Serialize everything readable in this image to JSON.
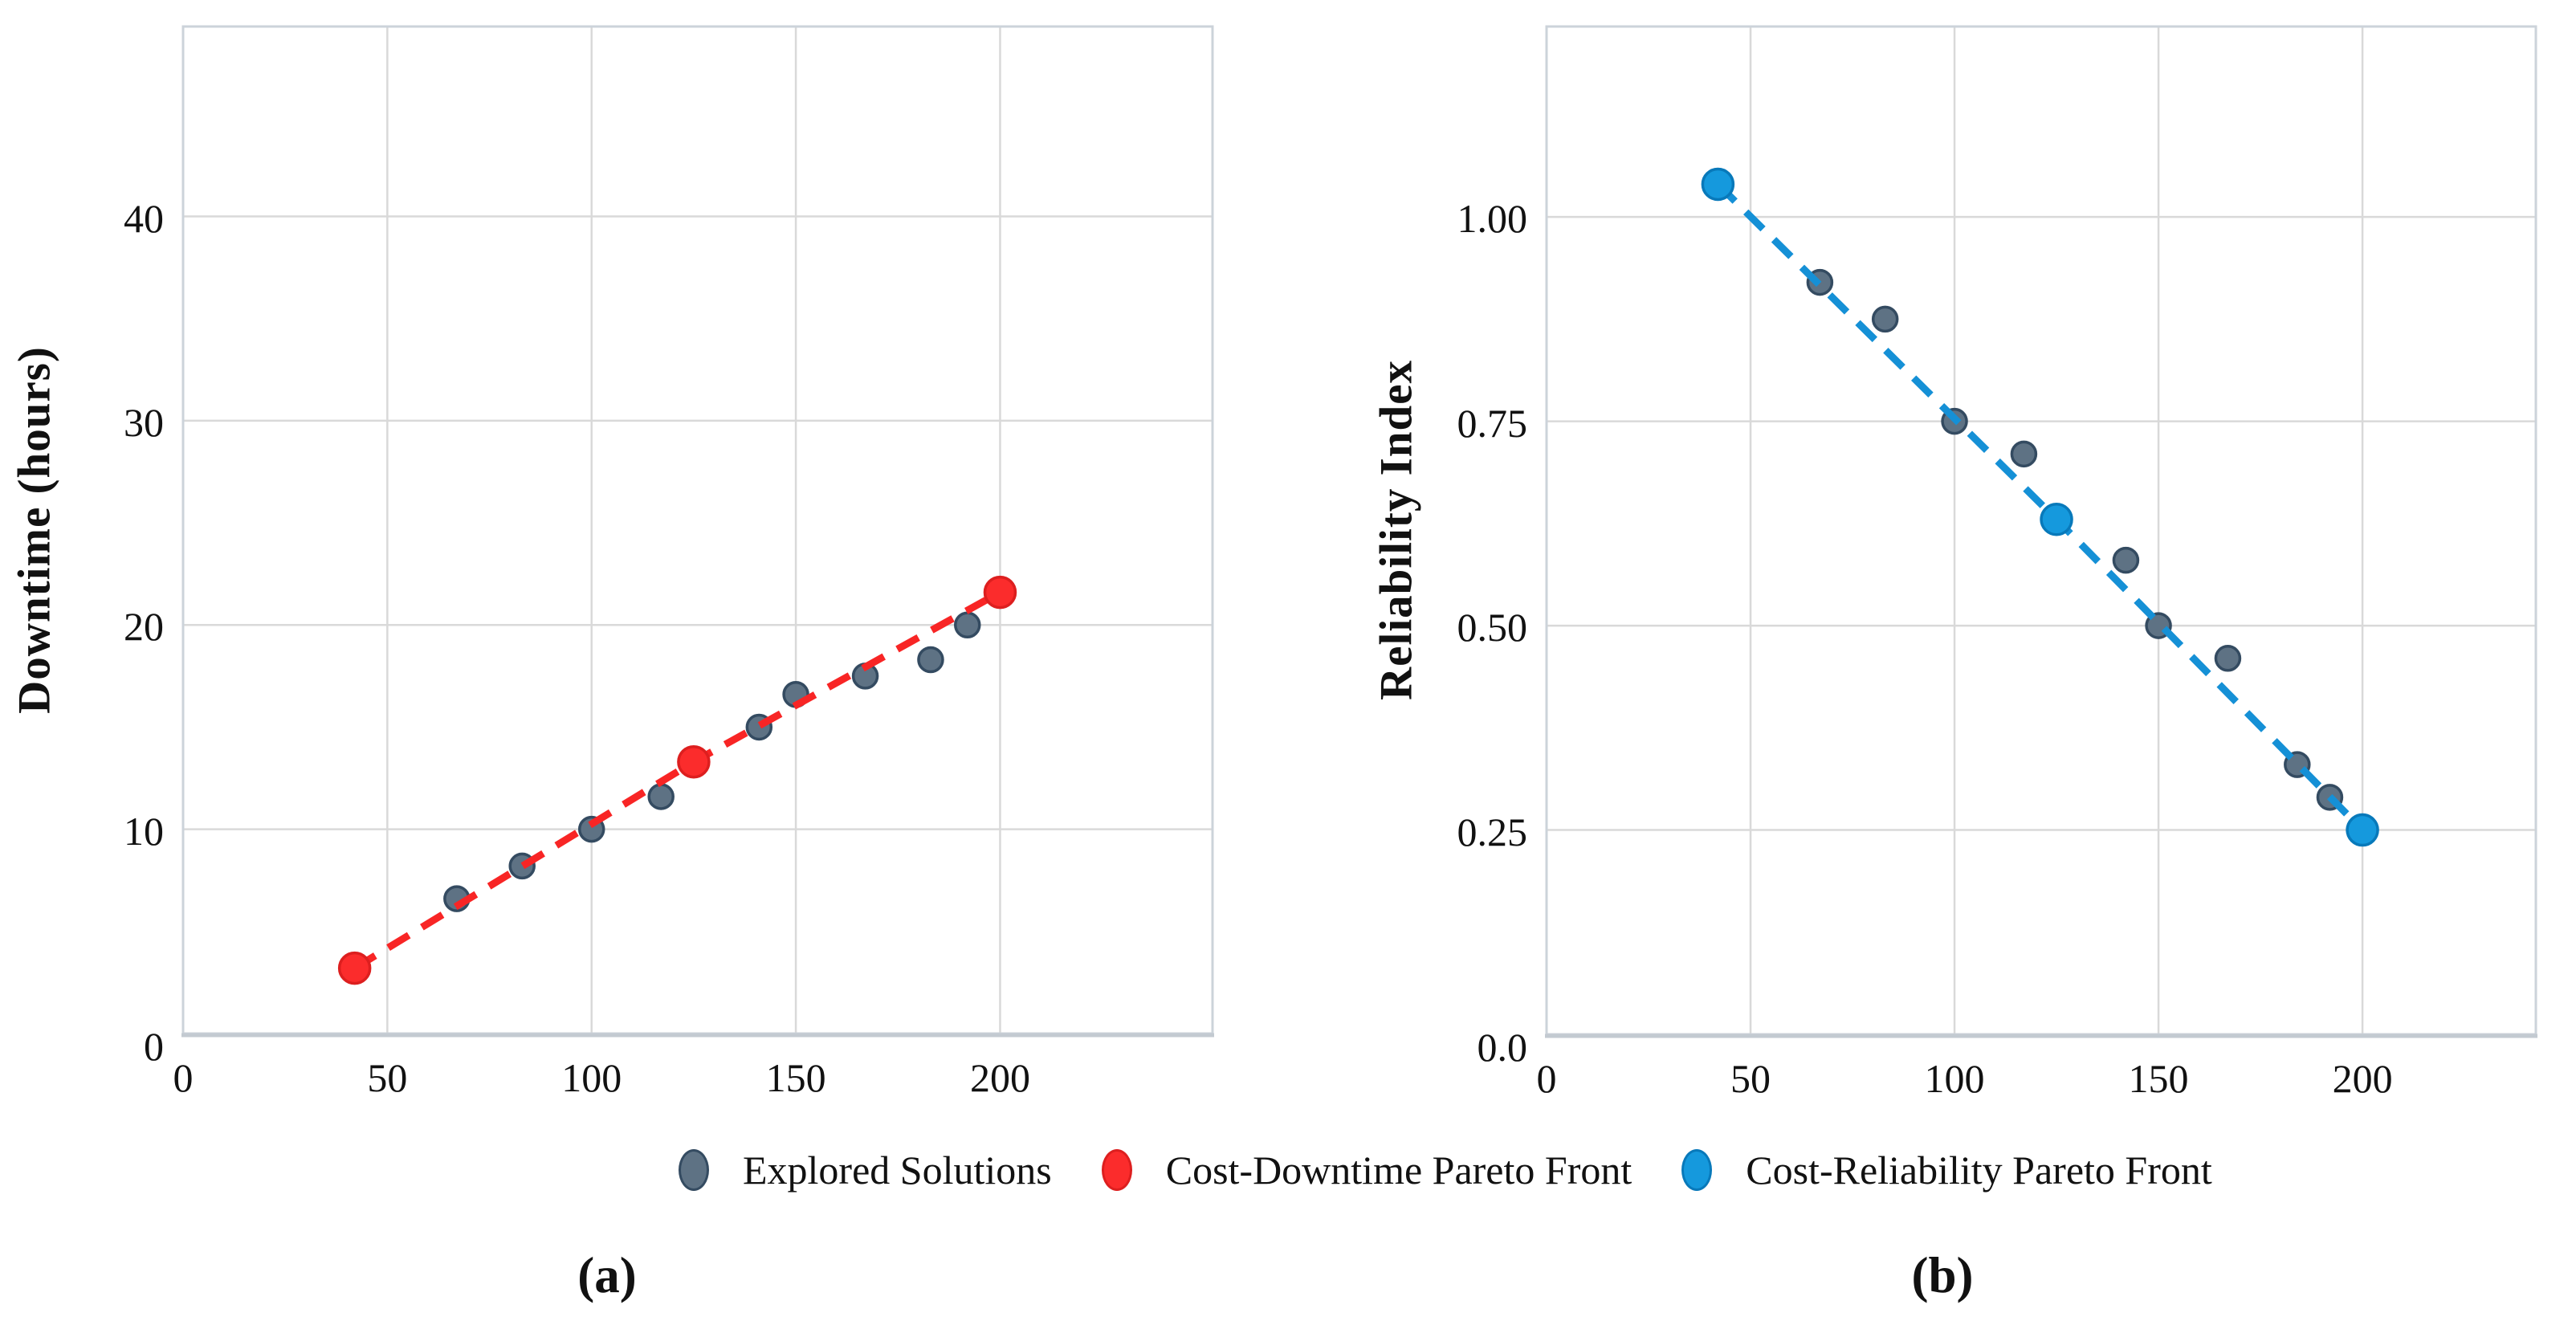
{
  "figure": {
    "background": "#ffffff"
  },
  "styles": {
    "gridline_color": "#d9d9d9",
    "plot_border_color": "#ccd3da",
    "axis_spine_color": "#c3cad1",
    "text_color": "#111111"
  },
  "legend": {
    "items": [
      {
        "label": "Explored Solutions",
        "icon": "gray-dot-icon",
        "color": "#5e7284",
        "edge_color": "#344b61"
      },
      {
        "label": "Cost-Downtime Pareto Front",
        "icon": "red-dot-icon",
        "color": "#fb2c2c",
        "edge_color": "#dd1f1f"
      },
      {
        "label": "Cost-Reliability Pareto Front",
        "icon": "blue-dot-icon",
        "color": "#1599dd",
        "edge_color": "#0879ba"
      }
    ]
  },
  "chart_data": [
    {
      "id": "a",
      "type": "scatter",
      "panel_label": "(a)",
      "xlabel": "",
      "ylabel": "Downtime (hours)",
      "xlim": [
        0,
        252
      ],
      "ylim": [
        0,
        49.3
      ],
      "xticks": [
        0,
        50,
        100,
        150,
        200
      ],
      "xtick_labels": [
        "0",
        "50",
        "100",
        "150",
        "200"
      ],
      "yticks": [
        0,
        10,
        20,
        30,
        40
      ],
      "ytick_labels": [
        "0",
        "10",
        "20",
        "30",
        "40"
      ],
      "grid": true,
      "legend_position": "below-figure",
      "series": [
        {
          "name": "Explored Solutions",
          "marker": "circle",
          "marker_radius": 15,
          "color": "#5e7284",
          "edge_color": "#344b61",
          "line": "none",
          "points": [
            [
              67,
              6.6
            ],
            [
              83,
              8.2
            ],
            [
              100,
              10.0
            ],
            [
              117,
              11.6
            ],
            [
              141,
              15.0
            ],
            [
              150,
              16.6
            ],
            [
              167,
              17.5
            ],
            [
              183,
              18.3
            ],
            [
              192,
              20.0
            ]
          ]
        },
        {
          "name": "Cost-Downtime Pareto Front",
          "marker": "circle",
          "marker_radius": 19,
          "color": "#fb2c2c",
          "edge_color": "#dd1f1f",
          "line": "dashed",
          "line_color": "#f82525",
          "points": [
            [
              42,
              3.2
            ],
            [
              125,
              13.3
            ],
            [
              200,
              21.6
            ]
          ]
        }
      ]
    },
    {
      "id": "b",
      "type": "scatter",
      "panel_label": "(b)",
      "xlabel": "",
      "ylabel": "Reliability Index",
      "xlim": [
        0,
        242.5
      ],
      "ylim": [
        0,
        1.233
      ],
      "xticks": [
        0,
        50,
        100,
        150,
        200
      ],
      "xtick_labels": [
        "0",
        "50",
        "100",
        "150",
        "200"
      ],
      "yticks": [
        0,
        0.25,
        0.5,
        0.75,
        1.0
      ],
      "ytick_labels": [
        "0.0",
        "0.25",
        "0.50",
        "0.75",
        "1.00"
      ],
      "grid": true,
      "legend_position": "below-figure",
      "series": [
        {
          "name": "Explored Solutions",
          "marker": "circle",
          "marker_radius": 15,
          "color": "#5e7284",
          "edge_color": "#344b61",
          "line": "none",
          "points": [
            [
              67,
              0.92
            ],
            [
              83,
              0.875
            ],
            [
              100,
              0.75
            ],
            [
              117,
              0.71
            ],
            [
              142,
              0.58
            ],
            [
              150,
              0.5
            ],
            [
              167,
              0.46
            ],
            [
              184,
              0.33
            ],
            [
              192,
              0.29
            ]
          ]
        },
        {
          "name": "Cost-Reliability Pareto Front",
          "marker": "circle",
          "marker_radius": 19,
          "color": "#1599dd",
          "edge_color": "#0879ba",
          "line": "dashed",
          "line_color": "#1590d6",
          "points": [
            [
              42,
              1.04
            ],
            [
              125,
              0.63
            ],
            [
              200,
              0.25
            ]
          ]
        }
      ]
    }
  ]
}
